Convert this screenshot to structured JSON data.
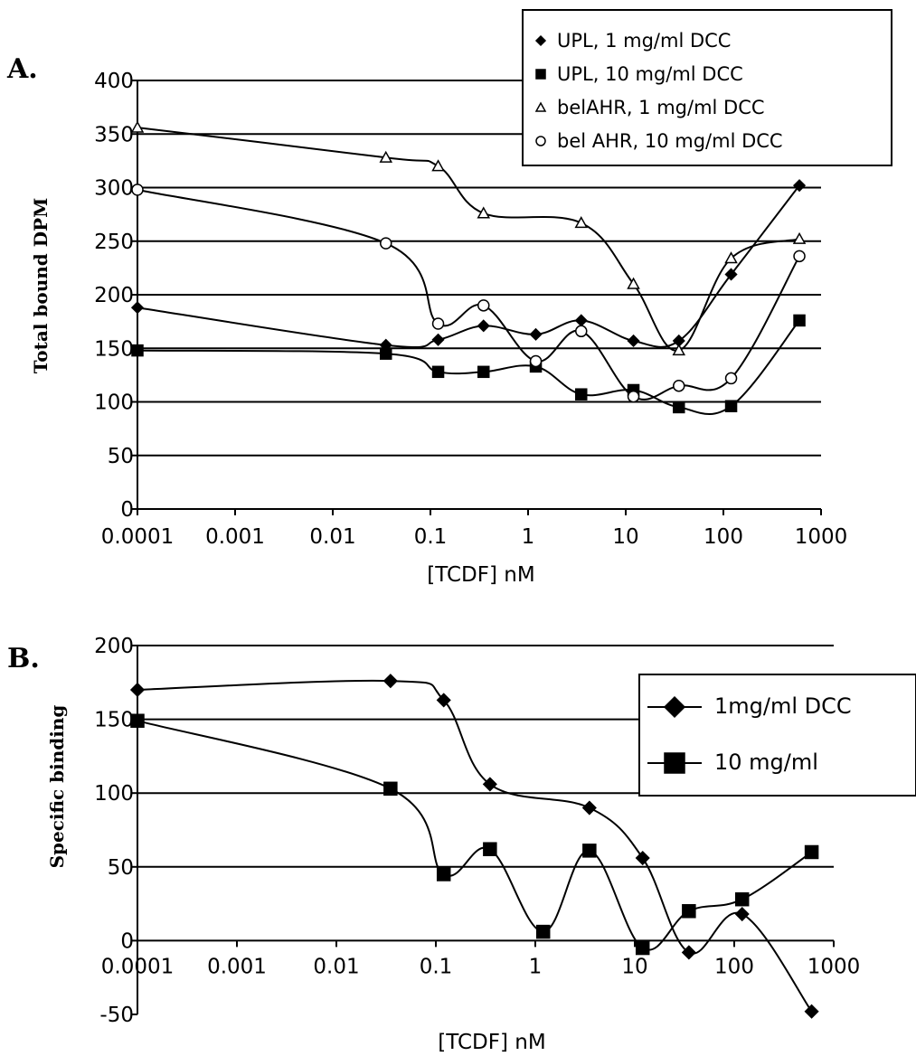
{
  "chart_data": [
    {
      "type": "line",
      "panel_label": "A.",
      "xlabel": "[TCDF] nM",
      "ylabel": "Total bound DPM",
      "x_scale": "log",
      "xlim": [
        0.0001,
        1000
      ],
      "ylim": [
        0,
        400
      ],
      "x_ticks": [
        "0.0001",
        "0.001",
        "0.01",
        "0.1",
        "1",
        "10",
        "100",
        "1000"
      ],
      "y_ticks": [
        "0",
        "50",
        "100",
        "150",
        "200",
        "250",
        "300",
        "350",
        "400"
      ],
      "grid": true,
      "legend_position": "top-right",
      "series": [
        {
          "name": "UPL, 1 mg/ml DCC",
          "marker": "diamond",
          "marker_fill": "#000000",
          "x": [
            0.0001,
            0.035,
            0.12,
            0.35,
            1.2,
            3.5,
            12,
            35,
            120,
            600
          ],
          "y": [
            188,
            153,
            158,
            171,
            163,
            176,
            157,
            157,
            219,
            302
          ]
        },
        {
          "name": "UPL, 10 mg/ml DCC",
          "marker": "square",
          "marker_fill": "#000000",
          "x": [
            0.0001,
            0.035,
            0.12,
            0.35,
            1.2,
            3.5,
            12,
            35,
            120,
            600
          ],
          "y": [
            148,
            145,
            128,
            128,
            133,
            107,
            111,
            95,
            96,
            176
          ]
        },
        {
          "name": "belAHR, 1 mg/ml DCC",
          "marker": "triangle",
          "marker_fill": "#ffffff",
          "x": [
            0.0001,
            0.035,
            0.12,
            0.35,
            3.5,
            12,
            35,
            120,
            600
          ],
          "y": [
            356,
            328,
            320,
            276,
            267,
            210,
            148,
            234,
            252
          ]
        },
        {
          "name": "bel AHR, 10 mg/ml DCC",
          "marker": "circle",
          "marker_fill": "#ffffff",
          "x": [
            0.0001,
            0.035,
            0.12,
            0.35,
            1.2,
            3.5,
            12,
            35,
            120,
            600
          ],
          "y": [
            298,
            248,
            173,
            190,
            138,
            166,
            105,
            115,
            122,
            236
          ]
        }
      ]
    },
    {
      "type": "line",
      "panel_label": "B.",
      "xlabel": "[TCDF] nM",
      "ylabel": "Specific binding",
      "x_scale": "log",
      "xlim": [
        0.0001,
        1000
      ],
      "ylim": [
        -50,
        200
      ],
      "x_ticks": [
        "0.0001",
        "0.001",
        "0.01",
        "0.1",
        "1",
        "10",
        "100",
        "1000"
      ],
      "y_ticks": [
        "-50",
        "0",
        "50",
        "100",
        "150",
        "200"
      ],
      "grid": true,
      "legend_position": "top-right",
      "series": [
        {
          "name": "1mg/ml DCC",
          "marker": "diamond",
          "marker_fill": "#000000",
          "x": [
            0.0001,
            0.035,
            0.12,
            0.35,
            3.5,
            12,
            35,
            120,
            600
          ],
          "y": [
            170,
            176,
            163,
            106,
            90,
            56,
            -8,
            18,
            -48
          ]
        },
        {
          "name": "10 mg/ml",
          "marker": "square",
          "marker_fill": "#000000",
          "x": [
            0.0001,
            0.035,
            0.12,
            0.35,
            1.2,
            3.5,
            12,
            35,
            120,
            600
          ],
          "y": [
            149,
            103,
            45,
            62,
            6,
            61,
            -5,
            20,
            28,
            60
          ]
        }
      ]
    }
  ]
}
